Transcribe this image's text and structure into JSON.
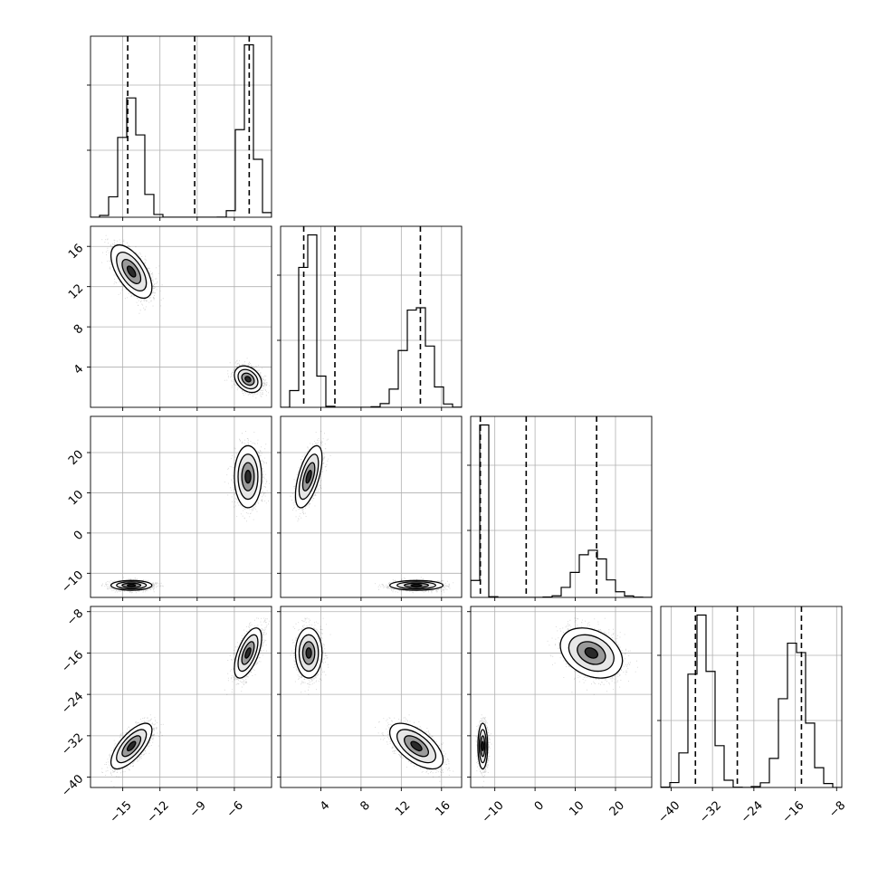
{
  "chart_data": {
    "type": "corner",
    "title": "",
    "grid": true,
    "parameters": [
      {
        "range": [
          -17.6,
          -3.0
        ],
        "ticks": [
          -15,
          -12,
          -9,
          -6
        ],
        "tick_labels": [
          "−15",
          "−12",
          "−9",
          "−6"
        ],
        "modes": [
          {
            "mu": -14.3,
            "sd": 0.75,
            "w": 0.5
          },
          {
            "mu": -4.9,
            "sd": 0.5,
            "w": 0.5
          }
        ],
        "quantiles": [
          -14.6,
          -9.2,
          -4.8
        ]
      },
      {
        "range": [
          0.0,
          18.0
        ],
        "ticks": [
          4,
          8,
          12,
          16
        ],
        "tick_labels": [
          "4",
          "8",
          "12",
          "16"
        ],
        "modes": [
          {
            "mu": 13.5,
            "sd": 1.2,
            "w": 0.5
          },
          {
            "mu": 2.8,
            "sd": 0.6,
            "w": 0.5
          }
        ],
        "quantiles": [
          2.3,
          5.4,
          13.9
        ]
      },
      {
        "range": [
          -16.0,
          29.0
        ],
        "ticks": [
          -10,
          0,
          10,
          20
        ],
        "tick_labels": [
          "−10",
          "0",
          "10",
          "20"
        ],
        "modes": [
          {
            "mu": -13.0,
            "sd": 0.55,
            "w": 0.5
          },
          {
            "mu": 14.0,
            "sd": 3.5,
            "w": 0.5
          }
        ],
        "quantiles": [
          -13.6,
          -2.2,
          15.3
        ]
      },
      {
        "range": [
          -42.0,
          -7.0
        ],
        "ticks": [
          -40,
          -32,
          -24,
          -16,
          -8
        ],
        "tick_labels": [
          "−40",
          "−32",
          "−24",
          "−16",
          "−8"
        ],
        "modes": [
          {
            "mu": -34.0,
            "sd": 2.0,
            "w": 0.5
          },
          {
            "mu": -16.0,
            "sd": 2.2,
            "w": 0.5
          }
        ],
        "quantiles": [
          -35.3,
          -27.2,
          -14.8
        ]
      }
    ],
    "clusters": [
      {
        "means": [
          -14.3,
          13.5,
          -13.0,
          -34.0
        ],
        "sds": [
          0.75,
          1.2,
          0.55,
          2.0
        ],
        "corr": {
          "0-1": -0.6,
          "0-2": 0.0,
          "0-3": 0.7,
          "1-2": 0.0,
          "1-3": -0.6,
          "2-3": 0.0
        }
      },
      {
        "means": [
          -4.9,
          2.8,
          14.0,
          -16.0
        ],
        "sds": [
          0.5,
          0.6,
          3.5,
          2.2
        ],
        "corr": {
          "0-1": -0.3,
          "0-2": 0.0,
          "0-3": 0.6,
          "1-2": 0.6,
          "1-3": 0.0,
          "2-3": -0.3
        }
      }
    ],
    "samples_per_cluster": 2500
  }
}
